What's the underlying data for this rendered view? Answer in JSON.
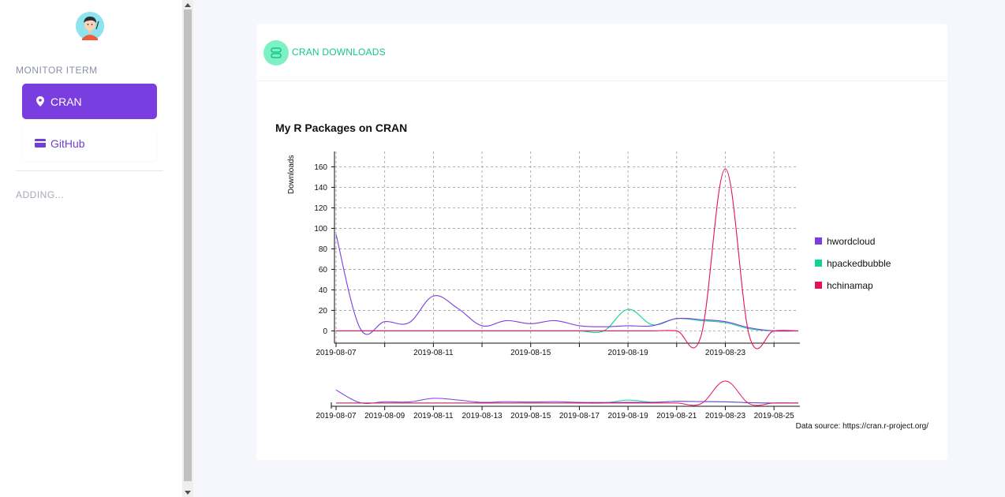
{
  "sidebar": {
    "section_title": "MONITOR ITERM",
    "items": [
      {
        "label": "CRAN",
        "icon": "map-marker-icon",
        "active": true
      },
      {
        "label": "GitHub",
        "icon": "credit-card-icon",
        "active": false
      }
    ],
    "adding_label": "ADDING..."
  },
  "card": {
    "title": "CRAN DOWNLOADS",
    "icon": "link-icon",
    "accent": "#12c78a"
  },
  "colors": {
    "primary": "#7a3de0",
    "hwordcloud": "#7a3de0",
    "hpackedbubble": "#12d192",
    "hchinamap": "#e5105d"
  },
  "chart_data": {
    "type": "line",
    "title": "My R Packages on CRAN",
    "ylabel": "Downloads",
    "xlabel": "",
    "x": [
      "2019-08-07",
      "2019-08-08",
      "2019-08-09",
      "2019-08-10",
      "2019-08-11",
      "2019-08-12",
      "2019-08-13",
      "2019-08-14",
      "2019-08-15",
      "2019-08-16",
      "2019-08-17",
      "2019-08-18",
      "2019-08-19",
      "2019-08-20",
      "2019-08-21",
      "2019-08-22",
      "2019-08-23",
      "2019-08-24",
      "2019-08-25",
      "2019-08-26"
    ],
    "xticks": [
      "2019-08-07",
      "2019-08-11",
      "2019-08-15",
      "2019-08-19",
      "2019-08-23"
    ],
    "navigator_xticks": [
      "2019-08-07",
      "2019-08-09",
      "2019-08-11",
      "2019-08-13",
      "2019-08-15",
      "2019-08-17",
      "2019-08-19",
      "2019-08-21",
      "2019-08-23",
      "2019-08-25"
    ],
    "yticks": [
      0,
      20,
      40,
      60,
      80,
      100,
      120,
      140,
      160
    ],
    "ylim": [
      -12,
      175
    ],
    "grid": true,
    "legend_position": "right",
    "series": [
      {
        "name": "hwordcloud",
        "values": [
          94,
          2,
          9,
          8,
          34,
          22,
          5,
          10,
          7,
          10,
          5,
          4,
          5,
          5,
          12,
          11,
          9,
          3,
          0,
          0
        ]
      },
      {
        "name": "hpackedbubble",
        "values": [
          0,
          0,
          0,
          0,
          0,
          0,
          0,
          0,
          0,
          0,
          0,
          0,
          21,
          6,
          12,
          10,
          8,
          2,
          0,
          0
        ]
      },
      {
        "name": "hchinamap",
        "values": [
          0,
          0,
          0,
          0,
          0,
          0,
          0,
          0,
          0,
          0,
          0,
          0,
          0,
          0,
          0,
          -5,
          158,
          -6,
          0,
          0
        ]
      }
    ],
    "source_text": "Data source: https://cran.r-project.org/"
  }
}
